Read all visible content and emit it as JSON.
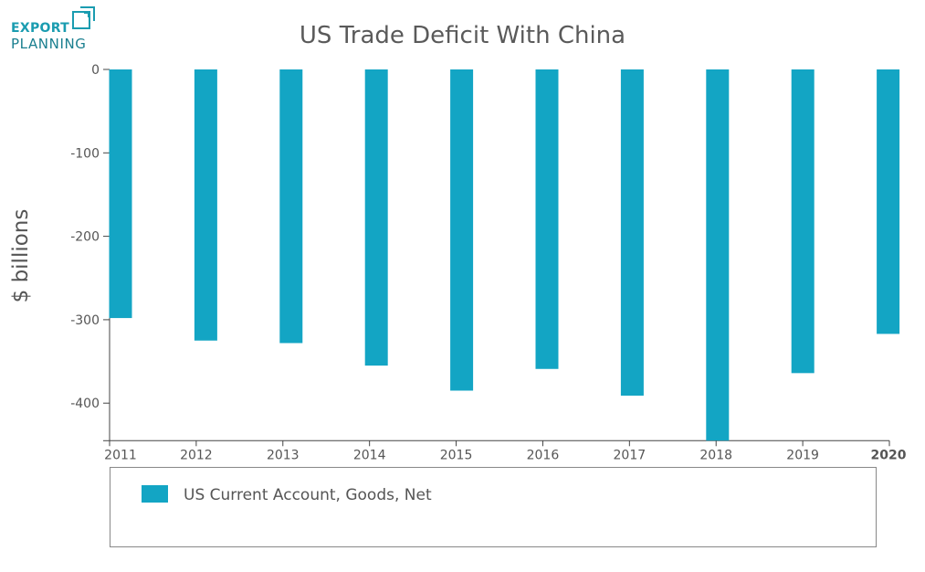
{
  "logo": {
    "line1": "EXPORT",
    "line2": "PLANNING"
  },
  "chart_data": {
    "type": "bar",
    "title": "US Trade Deficit With China",
    "xlabel": "",
    "ylabel": "$ billions",
    "categories": [
      "2011",
      "2012",
      "2013",
      "2014",
      "2015",
      "2016",
      "2017",
      "2018",
      "2019",
      "2020"
    ],
    "series": [
      {
        "name": "US Current Account, Goods, Net",
        "values": [
          -298,
          -325,
          -328,
          -355,
          -385,
          -359,
          -391,
          -445,
          -364,
          -317
        ]
      }
    ],
    "yticks": [
      0,
      -100,
      -200,
      -300,
      -400
    ],
    "ylim": [
      -445,
      0
    ],
    "grid": false,
    "legend_position": "bottom",
    "colors": {
      "bar": "#13a5c4",
      "axis": "#444444",
      "text": "#555555"
    }
  }
}
